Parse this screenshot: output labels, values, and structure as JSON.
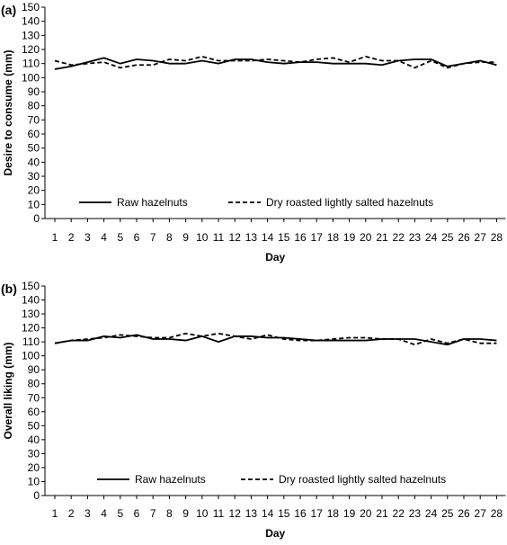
{
  "chart_data": [
    {
      "type": "line",
      "panel_label": "(a)",
      "xlabel": "Day",
      "ylabel": "Desire to consume (mm)",
      "ylim": [
        0,
        150
      ],
      "yticks": [
        0,
        10,
        20,
        30,
        40,
        50,
        60,
        70,
        80,
        90,
        100,
        110,
        120,
        130,
        140,
        150
      ],
      "x": [
        1,
        2,
        3,
        4,
        5,
        6,
        7,
        8,
        9,
        10,
        11,
        12,
        13,
        14,
        15,
        16,
        17,
        18,
        19,
        20,
        21,
        22,
        23,
        24,
        25,
        26,
        27,
        28
      ],
      "grid": false,
      "legend_position": "lower-center",
      "series": [
        {
          "name": "Raw hazelnuts",
          "style": "solid",
          "color": "#000000",
          "values": [
            106,
            108,
            111,
            114,
            110,
            113,
            112,
            110,
            110,
            112,
            110,
            113,
            113,
            111,
            110,
            111,
            111,
            110,
            110,
            110,
            109,
            112,
            113,
            113,
            108,
            110,
            112,
            109
          ]
        },
        {
          "name": "Dry roasted lightly salted hazelnuts",
          "style": "dashed",
          "color": "#000000",
          "values": [
            112,
            109,
            110,
            111,
            107,
            109,
            109,
            113,
            112,
            115,
            112,
            112,
            112,
            113,
            112,
            111,
            113,
            114,
            111,
            115,
            112,
            112,
            107,
            112,
            107,
            110,
            111,
            111
          ]
        }
      ]
    },
    {
      "type": "line",
      "panel_label": "(b)",
      "xlabel": "Day",
      "ylabel": "Overall liking (mm)",
      "ylim": [
        0,
        150
      ],
      "yticks": [
        0,
        10,
        20,
        30,
        40,
        50,
        60,
        70,
        80,
        90,
        100,
        110,
        120,
        130,
        140,
        150
      ],
      "x": [
        1,
        2,
        3,
        4,
        5,
        6,
        7,
        8,
        9,
        10,
        11,
        12,
        13,
        14,
        15,
        16,
        17,
        18,
        19,
        20,
        21,
        22,
        23,
        24,
        25,
        26,
        27,
        28
      ],
      "grid": false,
      "legend_position": "lower-center",
      "series": [
        {
          "name": "Raw hazelnuts",
          "style": "solid",
          "color": "#000000",
          "values": [
            109,
            111,
            111,
            114,
            113,
            115,
            112,
            112,
            111,
            114,
            110,
            114,
            114,
            113,
            113,
            112,
            111,
            111,
            111,
            111,
            112,
            112,
            112,
            110,
            108,
            112,
            112,
            111
          ]
        },
        {
          "name": "Dry roasted lightly salted hazelnuts",
          "style": "dashed",
          "color": "#000000",
          "values": [
            109,
            111,
            112,
            113,
            115,
            114,
            113,
            113,
            116,
            114,
            116,
            114,
            112,
            115,
            112,
            111,
            111,
            112,
            113,
            113,
            112,
            112,
            108,
            112,
            109,
            112,
            109,
            109
          ]
        }
      ]
    }
  ]
}
